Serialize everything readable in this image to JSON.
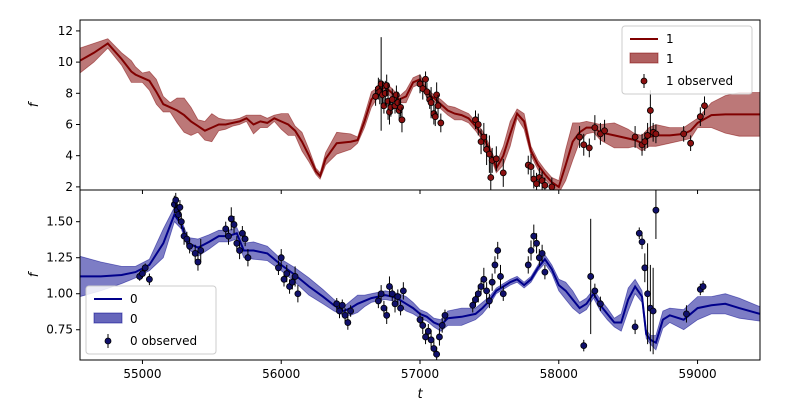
{
  "chart_data": [
    {
      "type": "line",
      "panel": "top",
      "ylabel": "f",
      "xlabel": "",
      "xlim": [
        54550,
        59450
      ],
      "ylim": [
        1.8,
        12.7
      ],
      "yticks": [
        2,
        4,
        6,
        8,
        10,
        12
      ],
      "legend": {
        "placement": "upper-right",
        "entries": [
          "1",
          "1",
          "1 observed"
        ]
      },
      "colors": {
        "line": "#800000",
        "band": "#b06060",
        "points": "#8b1010"
      },
      "model": {
        "name": "1",
        "x": [
          54550,
          54650,
          54750,
          54850,
          54920,
          54950,
          55000,
          55050,
          55100,
          55150,
          55200,
          55250,
          55300,
          55350,
          55400,
          55450,
          55500,
          55550,
          55600,
          55650,
          55700,
          55750,
          55800,
          55850,
          55900,
          55950,
          56000,
          56050,
          56100,
          56150,
          56200,
          56250,
          56280,
          56320,
          56400,
          56500,
          56550,
          56600,
          56650,
          56700,
          56750,
          56800,
          56850,
          56900,
          56950,
          57000,
          57050,
          57100,
          57150,
          57200,
          57250,
          57300,
          57350,
          57400,
          57450,
          57500,
          57550,
          57600,
          57650,
          57700,
          57750,
          57800,
          57850,
          57900,
          57950,
          58000,
          58050,
          58100,
          58150,
          58200,
          58250,
          58300,
          58400,
          58500,
          58550,
          58600,
          58650,
          58700,
          58800,
          58900,
          58950,
          59000,
          59100,
          59200,
          59300,
          59450
        ],
        "y": [
          10.1,
          10.6,
          11.2,
          10.2,
          9.4,
          9.2,
          9.0,
          8.8,
          8.1,
          7.3,
          7.1,
          6.9,
          6.6,
          6.2,
          5.9,
          5.6,
          5.8,
          6.0,
          6.0,
          6.1,
          6.2,
          6.4,
          6.0,
          6.2,
          6.1,
          6.4,
          6.2,
          6.0,
          5.6,
          4.9,
          4.0,
          3.0,
          2.7,
          3.8,
          4.8,
          4.9,
          5.0,
          6.2,
          7.6,
          8.1,
          8.4,
          8.0,
          7.6,
          7.8,
          8.7,
          8.9,
          8.0,
          7.7,
          7.3,
          6.9,
          6.7,
          6.6,
          6.4,
          5.9,
          5.3,
          4.4,
          3.2,
          4.0,
          5.4,
          6.7,
          6.2,
          4.3,
          3.4,
          2.8,
          2.3,
          2.0,
          3.4,
          4.9,
          5.5,
          5.8,
          5.8,
          5.5,
          5.3,
          5.1,
          5.0,
          4.8,
          5.2,
          5.3,
          5.3,
          5.4,
          5.6,
          6.1,
          6.6,
          6.65,
          6.65,
          6.65
        ],
        "band_half_width": [
          0.8,
          0.6,
          0.3,
          0.4,
          0.7,
          0.5,
          0.3,
          0.6,
          0.8,
          0.5,
          0.3,
          0.8,
          1.1,
          0.9,
          0.4,
          0.6,
          0.9,
          0.4,
          0.3,
          0.2,
          0.2,
          0.2,
          0.6,
          0.4,
          0.3,
          0.2,
          0.5,
          0.7,
          0.3,
          0.6,
          0.4,
          0.2,
          0.2,
          0.4,
          0.7,
          0.5,
          0.2,
          0.4,
          0.5,
          0.3,
          0.3,
          0.3,
          0.2,
          0.4,
          0.3,
          0.3,
          0.3,
          0.2,
          0.3,
          0.3,
          0.4,
          0.3,
          0.3,
          0.3,
          0.3,
          0.3,
          0.3,
          0.6,
          0.8,
          0.3,
          0.5,
          0.3,
          0.3,
          0.3,
          0.3,
          0.4,
          1.0,
          1.2,
          0.6,
          0.4,
          0.3,
          0.5,
          0.8,
          0.6,
          0.4,
          0.5,
          0.6,
          0.7,
          0.5,
          0.4,
          0.5,
          0.3,
          0.8,
          1.2,
          1.4,
          1.4
        ]
      },
      "observed": {
        "name": "1 observed",
        "x": [
          56680,
          56700,
          56710,
          56720,
          56730,
          56740,
          56750,
          56760,
          56770,
          56780,
          56790,
          56800,
          56820,
          56830,
          56840,
          56850,
          56860,
          56870,
          57000,
          57020,
          57040,
          57050,
          57070,
          57080,
          57100,
          57110,
          57120,
          57130,
          57150,
          57400,
          57420,
          57440,
          57460,
          57480,
          57500,
          57510,
          57520,
          57550,
          57600,
          57780,
          57800,
          57820,
          57840,
          57860,
          57880,
          57900,
          57950,
          58150,
          58180,
          58220,
          58260,
          58300,
          58330,
          58550,
          58600,
          58620,
          58640,
          58660,
          58680,
          58700,
          58900,
          58950,
          59020,
          59050
        ],
        "y": [
          7.8,
          8.3,
          8.1,
          8.6,
          7.9,
          7.2,
          8.0,
          8.5,
          7.5,
          6.8,
          7.1,
          7.6,
          7.2,
          7.9,
          7.4,
          6.9,
          7.1,
          6.3,
          8.6,
          8.3,
          8.9,
          8.1,
          7.6,
          7.4,
          6.7,
          6.5,
          7.9,
          7.2,
          6.1,
          6.3,
          6.0,
          4.9,
          5.2,
          4.4,
          4.1,
          2.6,
          3.7,
          3.8,
          2.9,
          3.4,
          3.3,
          2.5,
          2.2,
          2.6,
          2.4,
          2.1,
          2.0,
          5.2,
          4.7,
          4.5,
          5.8,
          5.4,
          5.6,
          5.2,
          4.7,
          4.9,
          5.3,
          6.9,
          5.5,
          5.4,
          5.4,
          4.8,
          6.5,
          7.2
        ],
        "yerr": [
          0.6,
          0.7,
          0.8,
          3.0,
          0.9,
          0.5,
          0.8,
          0.7,
          1.2,
          0.8,
          0.6,
          0.7,
          0.5,
          0.6,
          0.7,
          0.6,
          0.6,
          0.8,
          0.6,
          0.7,
          0.5,
          0.6,
          0.6,
          1.0,
          0.7,
          0.6,
          0.8,
          0.7,
          0.6,
          0.6,
          0.7,
          0.8,
          0.9,
          1.0,
          1.2,
          1.0,
          0.8,
          0.8,
          0.9,
          0.6,
          0.8,
          0.6,
          0.7,
          0.6,
          0.6,
          0.5,
          0.6,
          0.7,
          0.7,
          0.6,
          0.8,
          0.7,
          0.7,
          0.7,
          0.7,
          0.6,
          0.8,
          1.3,
          0.6,
          0.6,
          0.5,
          0.5,
          0.6,
          0.6
        ]
      }
    },
    {
      "type": "line",
      "panel": "bottom",
      "ylabel": "f",
      "xlabel": "t",
      "xlim": [
        54550,
        59450
      ],
      "ylim": [
        0.54,
        1.72
      ],
      "yticks": [
        0.75,
        1.0,
        1.25,
        1.5
      ],
      "ytick_labels": [
        "0.75",
        "1.00",
        "1.25",
        "1.50"
      ],
      "xticks": [
        55000,
        56000,
        57000,
        58000,
        59000
      ],
      "legend": {
        "placement": "lower-left",
        "entries": [
          "0",
          "0",
          "0 observed"
        ]
      },
      "colors": {
        "line": "#00008b",
        "band": "#6666bb",
        "points": "#10106b"
      },
      "model": {
        "name": "0",
        "x": [
          54550,
          54700,
          54850,
          54950,
          55050,
          55150,
          55230,
          55280,
          55330,
          55400,
          55480,
          55550,
          55620,
          55680,
          55730,
          55800,
          55900,
          56000,
          56100,
          56200,
          56300,
          56380,
          56450,
          56500,
          56550,
          56600,
          56650,
          56700,
          56750,
          56800,
          56850,
          56900,
          56950,
          57000,
          57050,
          57100,
          57150,
          57200,
          57300,
          57400,
          57450,
          57500,
          57550,
          57600,
          57650,
          57700,
          57750,
          57800,
          57850,
          57900,
          57950,
          58000,
          58050,
          58100,
          58150,
          58200,
          58250,
          58300,
          58350,
          58400,
          58450,
          58500,
          58550,
          58600,
          58630,
          58660,
          58700,
          58750,
          58800,
          58900,
          59000,
          59100,
          59200,
          59300,
          59450
        ],
        "y": [
          1.12,
          1.12,
          1.13,
          1.15,
          1.2,
          1.35,
          1.55,
          1.48,
          1.35,
          1.32,
          1.36,
          1.4,
          1.4,
          1.42,
          1.3,
          1.3,
          1.28,
          1.2,
          1.13,
          1.05,
          0.98,
          0.92,
          0.88,
          0.9,
          0.93,
          0.95,
          0.97,
          0.98,
          0.99,
          0.98,
          0.96,
          0.93,
          0.9,
          0.86,
          0.84,
          0.8,
          0.78,
          0.83,
          0.84,
          0.86,
          0.9,
          0.95,
          1.02,
          1.05,
          1.08,
          1.1,
          1.06,
          1.1,
          1.18,
          1.24,
          1.17,
          1.06,
          1.02,
          0.96,
          0.9,
          0.93,
          1.0,
          0.92,
          0.86,
          0.8,
          0.8,
          0.96,
          1.05,
          0.98,
          0.72,
          0.68,
          0.66,
          0.82,
          0.85,
          0.82,
          0.9,
          0.92,
          0.93,
          0.9,
          0.86
        ],
        "band_half_width": [
          0.14,
          0.1,
          0.06,
          0.04,
          0.04,
          0.1,
          0.05,
          0.03,
          0.04,
          0.06,
          0.05,
          0.04,
          0.04,
          0.04,
          0.05,
          0.06,
          0.05,
          0.04,
          0.05,
          0.06,
          0.05,
          0.04,
          0.03,
          0.05,
          0.06,
          0.04,
          0.03,
          0.03,
          0.03,
          0.03,
          0.04,
          0.05,
          0.04,
          0.03,
          0.03,
          0.03,
          0.04,
          0.05,
          0.06,
          0.04,
          0.04,
          0.03,
          0.02,
          0.02,
          0.02,
          0.02,
          0.02,
          0.02,
          0.02,
          0.03,
          0.03,
          0.04,
          0.06,
          0.06,
          0.04,
          0.04,
          0.03,
          0.04,
          0.04,
          0.03,
          0.06,
          0.08,
          0.05,
          0.04,
          0.03,
          0.03,
          0.05,
          0.06,
          0.05,
          0.07,
          0.08,
          0.06,
          0.07,
          0.07,
          0.05
        ],
        "note_dummy": null
      },
      "observed": {
        "name": "0 observed",
        "x": [
          54980,
          55000,
          55020,
          55050,
          55230,
          55240,
          55250,
          55260,
          55270,
          55280,
          55300,
          55320,
          55340,
          55380,
          55400,
          55420,
          55600,
          55620,
          55640,
          55660,
          55680,
          55700,
          55720,
          55740,
          55760,
          55980,
          56000,
          56020,
          56040,
          56060,
          56080,
          56100,
          56120,
          56400,
          56420,
          56440,
          56460,
          56480,
          56500,
          56700,
          56720,
          56740,
          56760,
          56780,
          56800,
          56820,
          56840,
          56860,
          56880,
          57000,
          57020,
          57040,
          57060,
          57080,
          57100,
          57120,
          57140,
          57160,
          57180,
          57380,
          57400,
          57420,
          57440,
          57460,
          57480,
          57500,
          57520,
          57540,
          57560,
          57580,
          57600,
          57780,
          57800,
          57820,
          57840,
          57860,
          57880,
          57900,
          58180,
          58230,
          58260,
          58300,
          58550,
          58580,
          58600,
          58620,
          58640,
          58660,
          58680,
          58700,
          58920,
          59020,
          59040
        ],
        "y": [
          1.12,
          1.14,
          1.18,
          1.1,
          1.62,
          1.65,
          1.58,
          1.55,
          1.6,
          1.5,
          1.4,
          1.38,
          1.33,
          1.28,
          1.22,
          1.3,
          1.45,
          1.4,
          1.52,
          1.48,
          1.35,
          1.3,
          1.42,
          1.38,
          1.25,
          1.18,
          1.25,
          1.1,
          1.14,
          1.05,
          1.08,
          1.12,
          1.0,
          0.93,
          0.88,
          0.92,
          0.85,
          0.8,
          0.88,
          0.95,
          1.0,
          0.9,
          0.85,
          1.05,
          1.0,
          0.93,
          0.98,
          0.9,
          1.02,
          0.82,
          0.78,
          0.7,
          0.74,
          0.68,
          0.62,
          0.58,
          0.7,
          0.78,
          0.85,
          0.92,
          0.96,
          1.0,
          1.05,
          1.1,
          1.02,
          0.95,
          1.08,
          1.2,
          1.3,
          1.12,
          1.0,
          1.2,
          1.3,
          1.4,
          1.35,
          1.25,
          1.28,
          1.15,
          0.64,
          1.12,
          1.02,
          0.93,
          0.77,
          1.42,
          1.36,
          1.18,
          1.0,
          0.9,
          0.88,
          1.58,
          0.86,
          1.03,
          1.05
        ],
        "yerr": [
          0.03,
          0.03,
          0.03,
          0.04,
          0.06,
          0.05,
          0.05,
          0.06,
          0.05,
          0.05,
          0.06,
          0.05,
          0.05,
          0.06,
          0.06,
          0.08,
          0.05,
          0.06,
          0.08,
          0.06,
          0.05,
          0.06,
          0.05,
          0.05,
          0.06,
          0.05,
          0.06,
          0.05,
          0.06,
          0.05,
          0.05,
          0.07,
          0.06,
          0.04,
          0.05,
          0.04,
          0.05,
          0.05,
          0.04,
          0.05,
          0.06,
          0.05,
          0.06,
          0.07,
          0.05,
          0.06,
          0.05,
          0.05,
          0.06,
          0.05,
          0.06,
          0.05,
          0.05,
          0.06,
          0.05,
          0.05,
          0.06,
          0.05,
          0.04,
          0.05,
          0.05,
          0.06,
          0.05,
          0.08,
          0.06,
          0.05,
          0.06,
          0.06,
          0.06,
          0.08,
          0.05,
          0.06,
          0.07,
          0.08,
          0.07,
          0.06,
          0.06,
          0.05,
          0.04,
          0.4,
          0.05,
          0.05,
          0.05,
          0.04,
          0.05,
          0.1,
          0.35,
          0.3,
          0.3,
          0.2,
          0.06,
          0.04,
          0.04
        ]
      }
    }
  ]
}
